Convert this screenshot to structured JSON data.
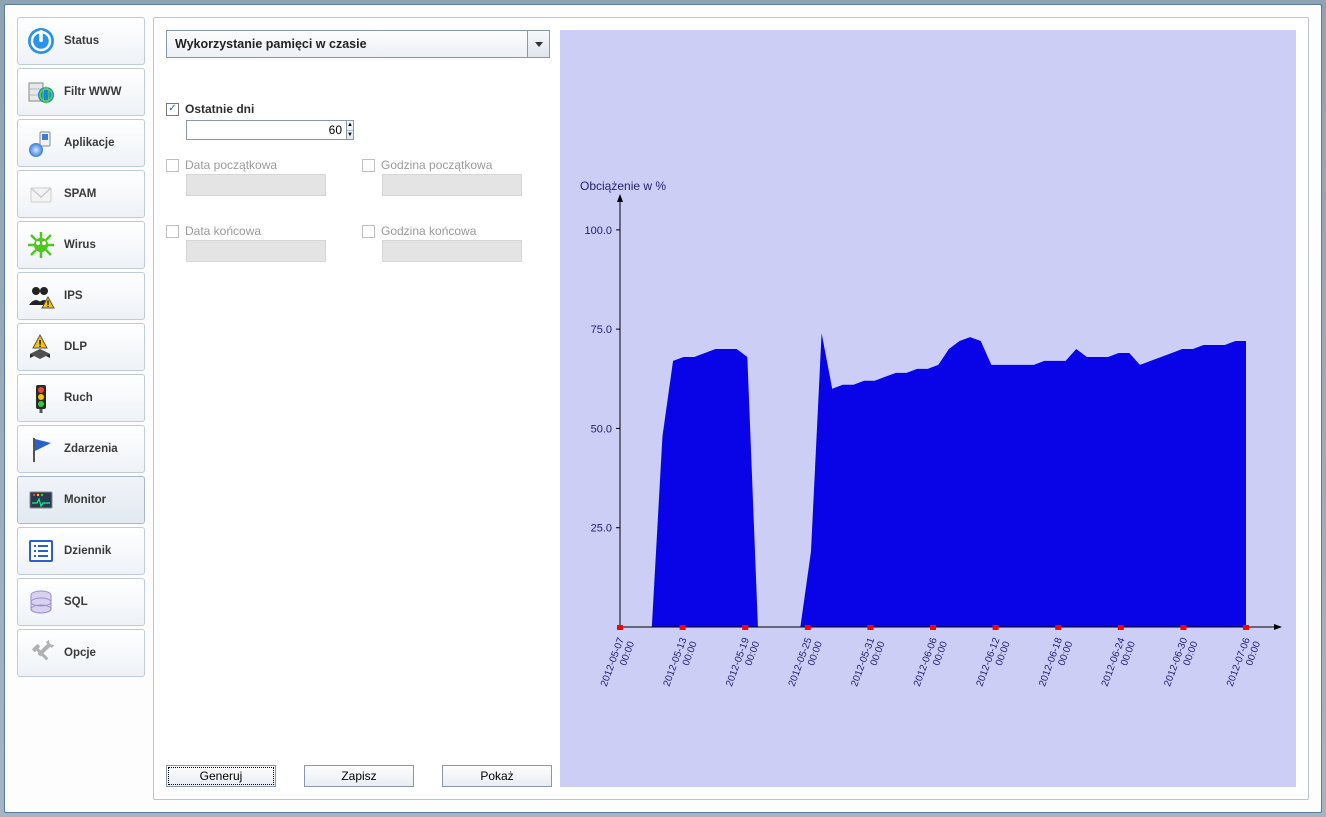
{
  "sidebar": {
    "items": [
      {
        "label": "Status"
      },
      {
        "label": "Filtr WWW"
      },
      {
        "label": "Aplikacje"
      },
      {
        "label": "SPAM"
      },
      {
        "label": "Wirus"
      },
      {
        "label": "IPS"
      },
      {
        "label": "DLP"
      },
      {
        "label": "Ruch"
      },
      {
        "label": "Zdarzenia"
      },
      {
        "label": "Monitor"
      },
      {
        "label": "Dziennik"
      },
      {
        "label": "SQL"
      },
      {
        "label": "Opcje"
      }
    ],
    "selected_index": 9
  },
  "dropdown": {
    "selected": "Wykorzystanie pamięci w czasie"
  },
  "form": {
    "last_days_label": "Ostatnie dni",
    "last_days_checked": true,
    "last_days_value": "60",
    "start_date_label": "Data początkowa",
    "start_time_label": "Godzina początkowa",
    "end_date_label": "Data końcowa",
    "end_time_label": "Godzina końcowa"
  },
  "buttons": {
    "generate": "Generuj",
    "save": "Zapisz",
    "show": "Pokaż"
  },
  "chart": {
    "type": "area",
    "title": "Obciążenie w %",
    "title_fontsize": 12,
    "background_color": "#cdcef6",
    "fill_color": "#0903e8",
    "axis_color": "#000000",
    "tick_marker_color": "#ff0000",
    "label_color": "#1f1f6b",
    "y": {
      "lim": [
        0,
        105
      ],
      "ticks": [
        25,
        50,
        75,
        100
      ],
      "tick_labels": [
        "25.0",
        "50.0",
        "75.0",
        "100.0"
      ]
    },
    "x": {
      "tick_labels": [
        "2012-05-07 00:00",
        "2012-05-13 00:00",
        "2012-05-19 00:00",
        "2012-05-25 00:00",
        "2012-05-31 00:00",
        "2012-06-06 00:00",
        "2012-06-12 00:00",
        "2012-06-18 00:00",
        "2012-06-24 00:00",
        "2012-06-30 00:00",
        "2012-07-06 00:00"
      ]
    },
    "series": {
      "n_points": 60,
      "values": [
        0,
        0,
        0,
        0,
        48,
        67,
        68,
        68,
        69,
        70,
        70,
        70,
        68,
        0,
        0,
        0,
        0,
        0,
        19,
        74,
        60,
        61,
        61,
        62,
        62,
        63,
        64,
        64,
        65,
        65,
        66,
        70,
        72,
        73,
        72,
        66,
        66,
        66,
        66,
        66,
        67,
        67,
        67,
        70,
        68,
        68,
        68,
        69,
        69,
        66,
        67,
        68,
        69,
        70,
        70,
        71,
        71,
        71,
        72,
        72
      ]
    }
  }
}
